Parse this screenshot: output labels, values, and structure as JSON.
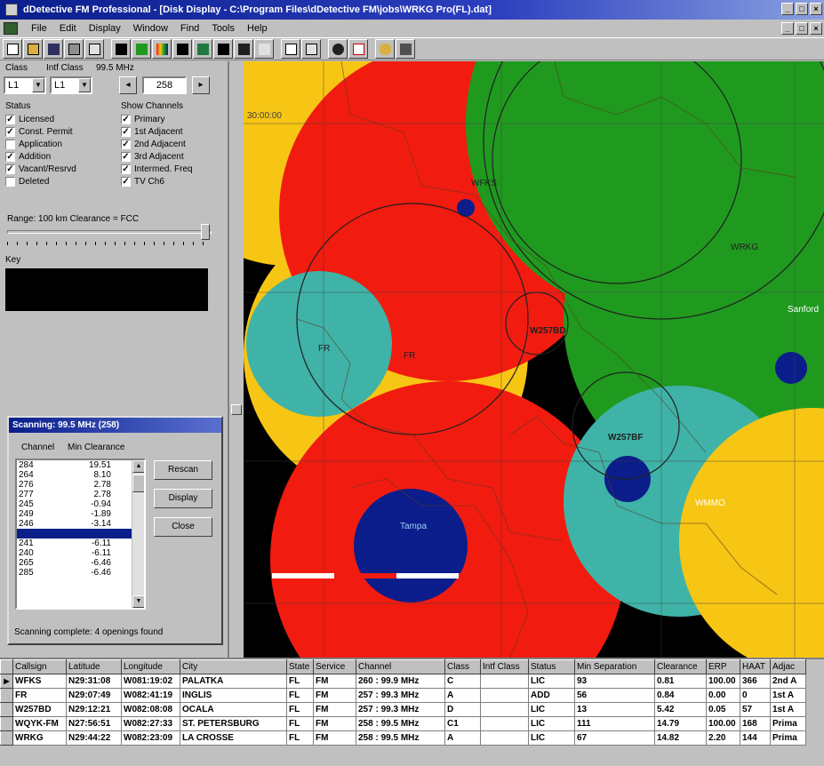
{
  "window": {
    "title": "dDetective FM Professional - [Disk Display - C:\\Program Files\\dDetective FM\\jobs\\WRKG Pro(FL).dat]",
    "controls": [
      "_",
      "□",
      "×"
    ]
  },
  "menu": [
    "File",
    "Edit",
    "Display",
    "Window",
    "Find",
    "Tools",
    "Help"
  ],
  "left_panel": {
    "class_label": "Class",
    "intf_class_label": "Intf Class",
    "freq_label": "99.5 MHz",
    "class_value": "L1",
    "intf_class_value": "L1",
    "channel_value": "258",
    "status_label": "Status",
    "status_items": [
      {
        "label": "Licensed",
        "checked": true
      },
      {
        "label": "Const. Permit",
        "checked": true
      },
      {
        "label": "Application",
        "checked": false
      },
      {
        "label": "Addition",
        "checked": true
      },
      {
        "label": "Vacant/Resrvd",
        "checked": true
      },
      {
        "label": "Deleted",
        "checked": false
      }
    ],
    "show_label": "Show Channels",
    "show_items": [
      {
        "label": "Primary",
        "checked": true
      },
      {
        "label": "1st Adjacent",
        "checked": true
      },
      {
        "label": "2nd Adjacent",
        "checked": true
      },
      {
        "label": "3rd Adjacent",
        "checked": true
      },
      {
        "label": "Intermed. Freq",
        "checked": true
      },
      {
        "label": "TV Ch6",
        "checked": true
      }
    ],
    "range_text": "Range: 100 km   Clearance = FCC",
    "key_label": "Key"
  },
  "dialog": {
    "title": "Scanning: 99.5 MHz (258)",
    "col_channel": "Channel",
    "col_clearance": "Min Clearance",
    "rows": [
      {
        "ch": "284",
        "val": "19.51"
      },
      {
        "ch": "264",
        "val": "8.10"
      },
      {
        "ch": "276",
        "val": "2.78"
      },
      {
        "ch": "277",
        "val": "2.78"
      },
      {
        "ch": "245",
        "val": "-0.94"
      },
      {
        "ch": "249",
        "val": "-1.89"
      },
      {
        "ch": "246",
        "val": "-3.14"
      },
      {
        "ch": "",
        "val": ""
      },
      {
        "ch": "241",
        "val": "-6.11"
      },
      {
        "ch": "240",
        "val": "-6.11"
      },
      {
        "ch": "265",
        "val": "-6.46"
      },
      {
        "ch": "285",
        "val": "-6.46"
      }
    ],
    "btn_rescan": "Rescan",
    "btn_display": "Display",
    "btn_close": "Close",
    "status": "Scanning complete: 4 openings found"
  },
  "map": {
    "grid_label": "30:00:00",
    "labels": [
      "WFKS",
      "W257BD",
      "FR",
      "W257BF",
      "WMMO",
      "WRKG",
      "Tampa",
      "Sanford"
    ],
    "colors": {
      "red": "#f21b10",
      "green": "#1f9a1f",
      "yellow": "#f7c514",
      "teal": "#3fb3a8",
      "blue": "#0b1d8a"
    }
  },
  "table": {
    "headers": [
      "Callsign",
      "Latitude",
      "Longitude",
      "City",
      "State",
      "Service",
      "Channel",
      "Class",
      "Intf Class",
      "Status",
      "Min Separation",
      "Clearance",
      "ERP",
      "HAAT",
      "Adjac"
    ],
    "rows": [
      [
        "WFKS",
        "N29:31:08",
        "W081:19:02",
        "PALATKA",
        "FL",
        "FM",
        "260 : 99.9 MHz",
        "C",
        "",
        "LIC",
        "93",
        "0.81",
        "100.00",
        "366",
        "2nd A"
      ],
      [
        "FR",
        "N29:07:49",
        "W082:41:19",
        "INGLIS",
        "FL",
        "FM",
        "257 : 99.3 MHz",
        "A",
        "",
        "ADD",
        "56",
        "0.84",
        "0.00",
        "0",
        "1st A"
      ],
      [
        "W257BD",
        "N29:12:21",
        "W082:08:08",
        "OCALA",
        "FL",
        "FM",
        "257 : 99.3 MHz",
        "D",
        "",
        "LIC",
        "13",
        "5.42",
        "0.05",
        "57",
        "1st A"
      ],
      [
        "WQYK-FM",
        "N27:56:51",
        "W082:27:33",
        "ST. PETERSBURG",
        "FL",
        "FM",
        "258 : 99.5 MHz",
        "C1",
        "",
        "LIC",
        "111",
        "14.79",
        "100.00",
        "168",
        "Prima"
      ],
      [
        "WRKG",
        "N29:44:22",
        "W082:23:09",
        "LA CROSSE",
        "FL",
        "FM",
        "258 : 99.5 MHz",
        "A",
        "",
        "LIC",
        "67",
        "14.82",
        "2.20",
        "144",
        "Prima"
      ]
    ]
  }
}
